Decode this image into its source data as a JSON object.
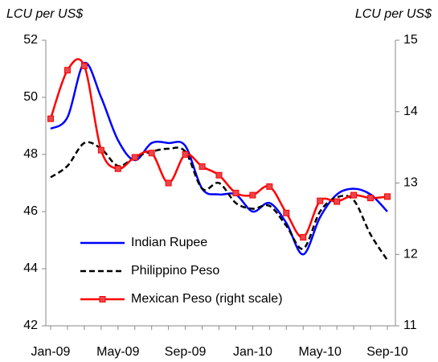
{
  "chart_data": {
    "type": "line",
    "y_label": "LCU per US$",
    "y2_label": "LCU per US$",
    "categories": [
      "Jan-09",
      null,
      null,
      null,
      "May-09",
      null,
      null,
      null,
      "Sep-09",
      null,
      null,
      null,
      "Jan-10",
      null,
      null,
      null,
      "May-10",
      null,
      null,
      null,
      "Sep-10"
    ],
    "series": [
      {
        "name": "Indian Rupee",
        "color": "#0000ff",
        "linestyle": "solid",
        "marker": null,
        "values": [
          48.9,
          49.3,
          51.2,
          50.0,
          48.5,
          47.8,
          48.4,
          48.4,
          48.3,
          46.8,
          46.6,
          46.6,
          46.0,
          46.3,
          45.6,
          44.5,
          45.8,
          46.6,
          46.8,
          46.6,
          46.0
        ]
      },
      {
        "name": "Philippino Peso",
        "color": "#000000",
        "linestyle": "dashed",
        "marker": null,
        "values": [
          47.2,
          47.6,
          48.4,
          48.2,
          47.6,
          47.9,
          48.1,
          48.2,
          48.1,
          46.8,
          47.0,
          46.3,
          46.1,
          46.2,
          45.5,
          44.7,
          46.0,
          46.5,
          46.4,
          45.2,
          44.3
        ]
      },
      {
        "name": "Mexican Peso (right scale)",
        "color": "#ff0000",
        "linestyle": "solid",
        "marker": "square",
        "axis": "y2",
        "values": [
          13.9,
          14.58,
          14.64,
          13.46,
          13.2,
          13.36,
          13.42,
          13.0,
          13.4,
          13.23,
          13.11,
          12.86,
          12.83,
          12.95,
          12.58,
          12.24,
          12.75,
          12.74,
          12.83,
          12.79,
          12.81
        ]
      }
    ],
    "ylim": [
      42,
      52
    ],
    "yticks": [
      42,
      44,
      46,
      48,
      50,
      52
    ],
    "y2lim": [
      11,
      15
    ],
    "y2ticks": [
      11,
      12,
      13,
      14,
      15
    ],
    "legend": "lower-left",
    "grid": false
  }
}
